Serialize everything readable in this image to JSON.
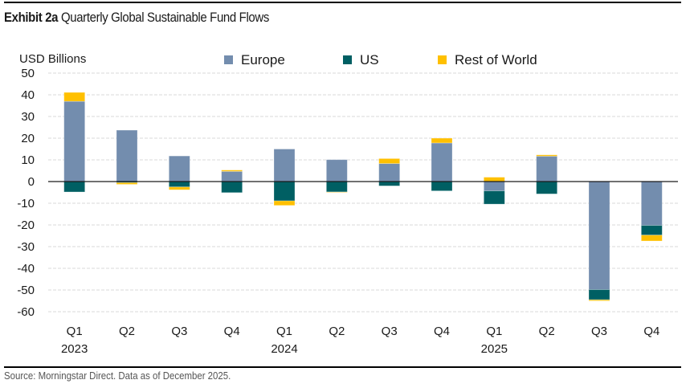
{
  "header": {
    "exhibit": "Exhibit 2a",
    "title": "Quarterly Global Sustainable Fund Flows"
  },
  "footer": {
    "source": "Source: Morningstar Direct. Data as of December 2025."
  },
  "colors": {
    "Europe": "#738dae",
    "US": "#005f63",
    "Rest of World": "#ffc000",
    "grid": "#d9d9d9",
    "zero_line": "#1a1a1a"
  },
  "chart_data": {
    "type": "bar",
    "stacked": true,
    "title": "Quarterly Global Sustainable Fund Flows",
    "xlabel": "",
    "ylabel": "USD Billions",
    "ylim": [
      -60,
      50
    ],
    "yticks": [
      50,
      40,
      30,
      20,
      10,
      0,
      -10,
      -20,
      -30,
      -40,
      -50,
      -60
    ],
    "grid": true,
    "legend_position": "top-center",
    "categories": [
      "Q1 2023",
      "Q2 2023",
      "Q3 2023",
      "Q4 2023",
      "Q1 2024",
      "Q2 2024",
      "Q3 2024",
      "Q4 2024",
      "Q1 2025",
      "Q2 2025",
      "Q3 2025",
      "Q4 2025"
    ],
    "tick_labels": [
      {
        "quarter": "Q1",
        "year": "2023"
      },
      {
        "quarter": "Q2",
        "year": ""
      },
      {
        "quarter": "Q3",
        "year": ""
      },
      {
        "quarter": "Q4",
        "year": ""
      },
      {
        "quarter": "Q1",
        "year": "2024"
      },
      {
        "quarter": "Q2",
        "year": ""
      },
      {
        "quarter": "Q3",
        "year": ""
      },
      {
        "quarter": "Q4",
        "year": ""
      },
      {
        "quarter": "Q1",
        "year": "2025"
      },
      {
        "quarter": "Q2",
        "year": ""
      },
      {
        "quarter": "Q3",
        "year": ""
      },
      {
        "quarter": "Q4",
        "year": ""
      }
    ],
    "series": [
      {
        "name": "Europe",
        "values": [
          37.0,
          23.7,
          11.8,
          4.7,
          15.0,
          10.1,
          8.3,
          17.8,
          -4.3,
          11.7,
          -49.8,
          -20.2
        ]
      },
      {
        "name": "US",
        "values": [
          -4.8,
          -0.5,
          -2.5,
          -5.1,
          -8.9,
          -4.8,
          -2.0,
          -4.3,
          -6.1,
          -5.7,
          -4.7,
          -4.5
        ]
      },
      {
        "name": "Rest of World",
        "values": [
          4.1,
          -0.8,
          -1.3,
          0.6,
          -2.1,
          -0.2,
          2.3,
          2.2,
          2.0,
          0.6,
          -0.5,
          -2.7
        ]
      }
    ]
  }
}
